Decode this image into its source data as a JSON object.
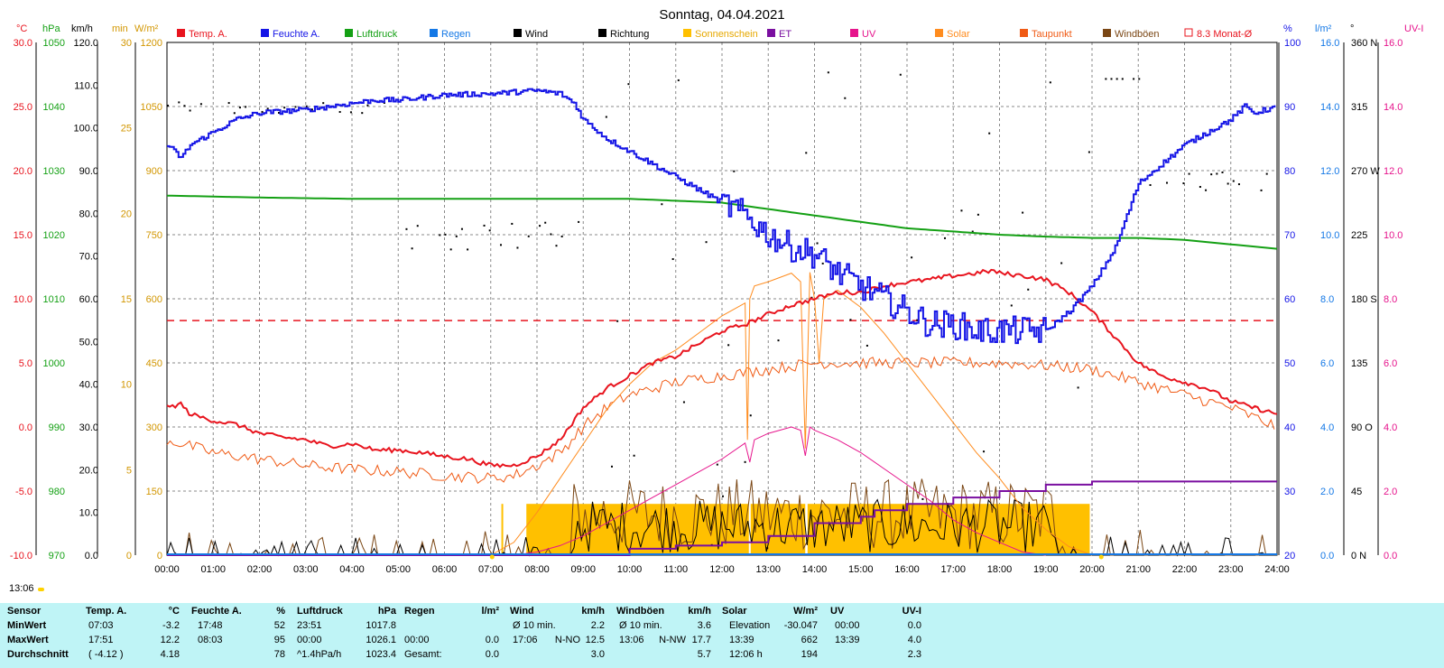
{
  "title": "Sonntag, 04.04.2021",
  "clock_label": "13:06",
  "colors": {
    "temp": "#e8141e",
    "humidity": "#1414e6",
    "pressure": "#14a014",
    "rain": "#1478e6",
    "wind": "#000000",
    "direction": "#000000",
    "sunshine": "#ffc000",
    "et": "#7a0fa0",
    "uv": "#e6148c",
    "solar": "#ff8c1e",
    "dewpoint": "#f05a14",
    "gusts": "#7a4614",
    "monthavg": "#e8141e",
    "grid": "#888888",
    "axis_temp": "#e8141e",
    "axis_pressure": "#14a014",
    "axis_sun": "#d29600",
    "axis_humidity": "#1414e6",
    "axis_rain": "#1478e6",
    "axis_uv": "#e6148c"
  },
  "axis_units": {
    "temp": "°C",
    "pressure": "hPa",
    "wind": "km/h",
    "sun_min": "min",
    "solar": "W/m²",
    "humidity": "%",
    "rain": "l/m²",
    "direction": "°",
    "uv": "UV-I"
  },
  "axis_ticks": {
    "temp": [
      "30.0",
      "25.0",
      "20.0",
      "15.0",
      "10.0",
      "5.0",
      "0.0",
      "-5.0",
      "-10.0"
    ],
    "pressure": [
      "1050",
      "1040",
      "1030",
      "1020",
      "1010",
      "1000",
      "990",
      "980",
      "970"
    ],
    "wind": [
      "120.0",
      "110.0",
      "100.0",
      "90.0",
      "80.0",
      "70.0",
      "60.0",
      "50.0",
      "40.0",
      "30.0",
      "20.0",
      "10.0",
      "0.0"
    ],
    "sun_min": [
      "30",
      "25",
      "20",
      "15",
      "10",
      "5",
      "0"
    ],
    "solar": [
      "1200",
      "1050",
      "900",
      "750",
      "600",
      "450",
      "300",
      "150",
      "0"
    ],
    "humidity": [
      "100",
      "90",
      "80",
      "70",
      "60",
      "50",
      "40",
      "30",
      "20"
    ],
    "rain": [
      "16.0",
      "14.0",
      "12.0",
      "10.0",
      "8.0",
      "6.0",
      "4.0",
      "2.0",
      "0.0"
    ],
    "direction": [
      "360 N",
      "315",
      "270 W",
      "225",
      "180 S",
      "135",
      "90 O",
      "45",
      "0 N"
    ],
    "uv": [
      "16.0",
      "14.0",
      "12.0",
      "10.0",
      "8.0",
      "6.0",
      "4.0",
      "2.0",
      "0.0"
    ]
  },
  "legend": [
    {
      "key": "temp",
      "label": "Temp. A.",
      "color": "#e8141e"
    },
    {
      "key": "humidity",
      "label": "Feuchte A.",
      "color": "#1414e6"
    },
    {
      "key": "pressure",
      "label": "Luftdruck",
      "color": "#14a014"
    },
    {
      "key": "rain",
      "label": "Regen",
      "color": "#1478e6"
    },
    {
      "key": "wind",
      "label": "Wind",
      "color": "#000000"
    },
    {
      "key": "direction",
      "label": "Richtung",
      "color": "#000000"
    },
    {
      "key": "sunshine",
      "label": "Sonnenschein",
      "color": "#ffc000"
    },
    {
      "key": "et",
      "label": "ET",
      "color": "#7a0fa0"
    },
    {
      "key": "uv",
      "label": "UV",
      "color": "#e6148c"
    },
    {
      "key": "solar",
      "label": "Solar",
      "color": "#ff8c1e"
    },
    {
      "key": "dewpoint",
      "label": "Taupunkt",
      "color": "#f05a14"
    },
    {
      "key": "gusts",
      "label": "Windböen",
      "color": "#7a4614"
    },
    {
      "key": "monthavg",
      "label": "8.3 Monat-Ø",
      "color": "#e8141e"
    }
  ],
  "chart_data": {
    "type": "line",
    "title": "Sonntag, 04.04.2021",
    "x_ticks": [
      "00:00",
      "01:00",
      "02:00",
      "03:00",
      "04:00",
      "05:00",
      "06:00",
      "07:00",
      "08:00",
      "09:00",
      "10:00",
      "11:00",
      "12:00",
      "13:00",
      "14:00",
      "15:00",
      "16:00",
      "17:00",
      "18:00",
      "19:00",
      "20:00",
      "21:00",
      "22:00",
      "23:00",
      "24:00"
    ],
    "xlim": [
      0,
      24
    ],
    "grid": true,
    "legend_position": "top",
    "month_average_temp": 8.3,
    "series": [
      {
        "name": "Temp. A.",
        "axis": "temp",
        "ylim": [
          -10,
          30
        ],
        "x": [
          0,
          0.3,
          0.5,
          1,
          1.5,
          2,
          2.5,
          3,
          3.5,
          4,
          4.5,
          5,
          5.5,
          6,
          6.5,
          7,
          7.5,
          8,
          8.5,
          9,
          9.5,
          10,
          10.5,
          11,
          11.5,
          12,
          12.5,
          13,
          13.5,
          14,
          14.5,
          15,
          15.5,
          16,
          16.5,
          17,
          17.5,
          17.85,
          18,
          18.5,
          19,
          19.5,
          20,
          20.5,
          21,
          21.5,
          22,
          22.5,
          23,
          23.5,
          24
        ],
        "y": [
          1.5,
          1.8,
          1.0,
          0.5,
          0.2,
          -0.5,
          -0.8,
          -1.0,
          -1.5,
          -1.3,
          -1.8,
          -1.8,
          -2.0,
          -2.3,
          -2.5,
          -3.0,
          -3.0,
          -2.3,
          -1.0,
          1.5,
          3.0,
          4.0,
          5.0,
          5.5,
          6.5,
          7.5,
          8.0,
          8.8,
          9.5,
          10.0,
          10.5,
          10.5,
          11.0,
          11.3,
          11.5,
          11.8,
          12.0,
          12.2,
          12.0,
          11.8,
          11.5,
          10.5,
          9.0,
          7.0,
          5.0,
          4.0,
          3.5,
          3.0,
          2.0,
          1.5,
          1.0
        ]
      },
      {
        "name": "Taupunkt",
        "axis": "temp",
        "ylim": [
          -10,
          30
        ],
        "x": [
          0,
          0.5,
          1,
          2,
          3,
          4,
          5,
          6,
          7,
          7.5,
          8,
          8.5,
          9,
          9.5,
          10,
          11,
          12,
          13,
          14,
          15,
          16,
          17,
          18,
          19,
          20,
          21,
          22,
          23,
          24
        ],
        "y": [
          -1.0,
          -1.5,
          -2.0,
          -2.5,
          -3.0,
          -3.3,
          -3.5,
          -3.8,
          -4.0,
          -3.8,
          -3.0,
          -2.0,
          0.0,
          1.5,
          2.5,
          3.5,
          4.0,
          4.5,
          5.0,
          5.0,
          5.0,
          5.0,
          5.0,
          4.8,
          4.5,
          3.5,
          2.5,
          1.5,
          0.0
        ]
      },
      {
        "name": "Feuchte A.",
        "axis": "humidity",
        "ylim": [
          20,
          100
        ],
        "x": [
          0,
          0.3,
          0.5,
          1,
          1.5,
          2,
          3,
          4,
          4.5,
          5,
          6,
          7,
          8,
          8.5,
          8.8,
          9,
          9.5,
          10,
          10.5,
          11,
          11.5,
          12,
          12.5,
          13,
          13.5,
          14,
          14.5,
          15,
          15.5,
          16,
          16.5,
          17,
          17.5,
          18,
          18.5,
          19,
          19.5,
          20,
          20.5,
          21,
          21.5,
          22,
          22.5,
          23,
          23.3,
          23.5,
          24
        ],
        "y": [
          84,
          82,
          84,
          86,
          88,
          89,
          89.5,
          90.5,
          91,
          91,
          91.8,
          92,
          92.5,
          92,
          90.5,
          88,
          85,
          83,
          81,
          79,
          77,
          75,
          73,
          70,
          68,
          67,
          64,
          62,
          60,
          58,
          56,
          56,
          55,
          55,
          55,
          55,
          58,
          62,
          68,
          78,
          81,
          84,
          86,
          88,
          90,
          89,
          90
        ]
      },
      {
        "name": "Luftdruck",
        "axis": "pressure",
        "ylim": [
          970,
          1050
        ],
        "x": [
          0,
          2,
          4,
          6,
          8,
          10,
          11,
          12,
          13,
          14,
          15,
          16,
          17,
          18,
          19,
          20,
          21,
          22,
          23,
          24
        ],
        "y": [
          1026.1,
          1025.8,
          1025.6,
          1025.6,
          1025.6,
          1025.6,
          1025.3,
          1025,
          1024,
          1023,
          1022,
          1021,
          1020.5,
          1020,
          1019.7,
          1019.5,
          1019.5,
          1019.2,
          1018.5,
          1017.8
        ]
      },
      {
        "name": "Solar",
        "axis": "solar",
        "ylim": [
          0,
          1200
        ],
        "x": [
          7,
          7.5,
          8,
          8.5,
          9,
          9.5,
          10,
          10.5,
          11,
          11.5,
          12,
          12.5,
          12.55,
          12.6,
          12.7,
          13,
          13.5,
          13.7,
          13.8,
          13.9,
          14,
          14.1,
          14.2,
          14.5,
          15,
          15.5,
          16,
          16.5,
          17,
          17.5,
          18,
          18.5,
          19,
          19.5,
          20
        ],
        "y": [
          0,
          30,
          100,
          180,
          260,
          340,
          400,
          450,
          480,
          520,
          560,
          590,
          270,
          600,
          630,
          640,
          660,
          640,
          250,
          662,
          600,
          450,
          600,
          620,
          580,
          520,
          450,
          380,
          310,
          240,
          180,
          110,
          60,
          20,
          0
        ]
      },
      {
        "name": "UV",
        "axis": "uv",
        "ylim": [
          0,
          16
        ],
        "x": [
          7.5,
          8,
          8.5,
          9,
          9.5,
          10,
          10.5,
          11,
          11.5,
          12,
          12.5,
          12.6,
          12.7,
          13,
          13.5,
          13.7,
          13.8,
          13.9,
          14,
          14.5,
          15,
          15.5,
          16,
          16.5,
          17,
          17.5,
          18,
          18.5,
          19
        ],
        "y": [
          0,
          0.1,
          0.3,
          0.6,
          1.0,
          1.4,
          1.8,
          2.2,
          2.6,
          3.0,
          3.5,
          2.9,
          3.6,
          3.8,
          4.0,
          3.9,
          3.1,
          4.0,
          3.9,
          3.6,
          3.2,
          2.7,
          2.2,
          1.7,
          1.1,
          0.7,
          0.4,
          0.1,
          0
        ]
      },
      {
        "name": "ET",
        "axis": "rain",
        "ylim": [
          0,
          16
        ],
        "x": [
          0,
          9.5,
          10,
          11,
          12,
          13,
          14,
          15,
          15.3,
          16,
          17,
          18,
          19,
          20,
          24
        ],
        "y": [
          0,
          0,
          0.2,
          0.3,
          0.4,
          0.6,
          1.0,
          1.2,
          1.4,
          1.6,
          1.8,
          2.0,
          2.2,
          2.3,
          2.3
        ]
      },
      {
        "name": "Sonnenschein",
        "axis": "sun_min",
        "ylim": [
          0,
          30
        ],
        "segments": [
          [
            7.77,
            12.58
          ],
          [
            12.62,
            13.8
          ],
          [
            13.85,
            19.95
          ]
        ],
        "level": 3,
        "spike_at": 7.25,
        "spike_level": 3
      },
      {
        "name": "Wind",
        "axis": "wind",
        "ylim": [
          0,
          120
        ],
        "avg": 3.0,
        "max": 12.5
      },
      {
        "name": "Windböen",
        "axis": "wind",
        "ylim": [
          0,
          120
        ],
        "avg": 5.7,
        "max": 17.7
      }
    ]
  },
  "table": {
    "headers": {
      "sensor": "Sensor",
      "temp": "Temp. A.",
      "temp_unit": "°C",
      "hum": "Feuchte A.",
      "hum_unit": "%",
      "press": "Luftdruck",
      "press_unit": "hPa",
      "rain": "Regen",
      "rain_unit": "l/m²",
      "wind": "Wind",
      "wind_unit": "km/h",
      "gust": "Windböen",
      "gust_unit": "km/h",
      "solar": "Solar",
      "solar_unit": "W/m²",
      "uv": "UV",
      "uv_unit": "UV-I"
    },
    "rows": [
      {
        "label": "MinWert",
        "temp_time": "07:03",
        "temp_val": "-3.2",
        "hum_time": "17:48",
        "hum_val": "52",
        "press_time": "23:51",
        "press_val": "1017.8",
        "rain_time": "",
        "rain_val": "",
        "wind_time": "Ø 10 min.",
        "wind_dir": "",
        "wind_val": "2.2",
        "gust_time": "Ø 10 min.",
        "gust_dir": "",
        "gust_val": "3.6",
        "solar_time": "Elevation",
        "solar_val": "-30.047",
        "uv_time": "00:00",
        "uv_val": "0.0"
      },
      {
        "label": "MaxWert",
        "temp_time": "17:51",
        "temp_val": "12.2",
        "hum_time": "08:03",
        "hum_val": "95",
        "press_time": "00:00",
        "press_val": "1026.1",
        "rain_time": "00:00",
        "rain_val": "0.0",
        "wind_time": "17:06",
        "wind_dir": "N-NO",
        "wind_val": "12.5",
        "gust_time": "13:06",
        "gust_dir": "N-NW",
        "gust_val": "17.7",
        "solar_time": "13:39",
        "solar_val": "662",
        "uv_time": "13:39",
        "uv_val": "4.0"
      },
      {
        "label": "Durchschnitt",
        "temp_time": "( -4.12 )",
        "temp_val": "4.18",
        "hum_time": "",
        "hum_val": "78",
        "press_time": "^1.4hPa/h",
        "press_val": "1023.4",
        "rain_time": "Gesamt:",
        "rain_val": "0.0",
        "wind_time": "",
        "wind_dir": "",
        "wind_val": "3.0",
        "gust_time": "",
        "gust_dir": "",
        "gust_val": "5.7",
        "solar_time": "12:06 h",
        "solar_val": "194",
        "uv_time": "",
        "uv_val": "2.3"
      }
    ]
  }
}
